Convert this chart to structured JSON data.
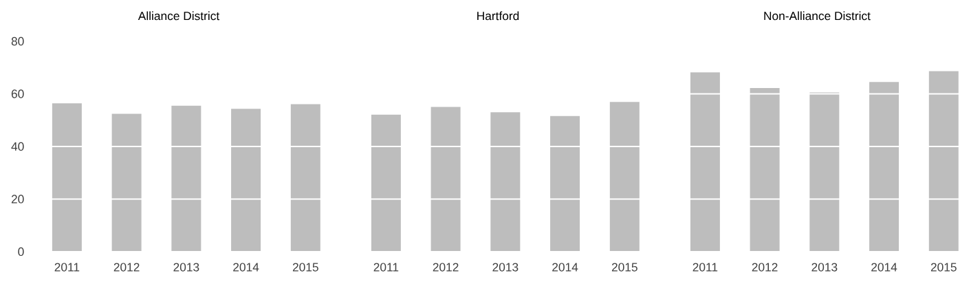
{
  "chart_data": [
    {
      "type": "bar",
      "title": "Alliance District",
      "categories": [
        "2011",
        "2012",
        "2013",
        "2014",
        "2015"
      ],
      "values": [
        56.4,
        52.4,
        55.5,
        54.3,
        56.1
      ],
      "color": "#bdbdbd",
      "ylim": [
        0,
        80
      ],
      "yticks": [
        0,
        20,
        40,
        60,
        80
      ],
      "grid": "y"
    },
    {
      "type": "bar",
      "title": "Hartford",
      "categories": [
        "2011",
        "2012",
        "2013",
        "2014",
        "2015"
      ],
      "values": [
        52.1,
        55.0,
        53.0,
        51.6,
        56.9
      ],
      "color": "#bdbdbd",
      "ylim": [
        0,
        80
      ],
      "yticks": [
        0,
        20,
        40,
        60,
        80
      ],
      "grid": "y",
      "tick_labels": "x"
    },
    {
      "type": "bar",
      "title": "Non-Alliance District",
      "categories": [
        "2011",
        "2012",
        "2013",
        "2014",
        "2015"
      ],
      "values": [
        68.2,
        62.2,
        60.5,
        64.5,
        68.6
      ],
      "color": "#bdbdbd",
      "ylim": [
        0,
        80
      ],
      "yticks": [
        0,
        20,
        40,
        60,
        80
      ],
      "grid": "y",
      "tick_labels": "x"
    }
  ]
}
